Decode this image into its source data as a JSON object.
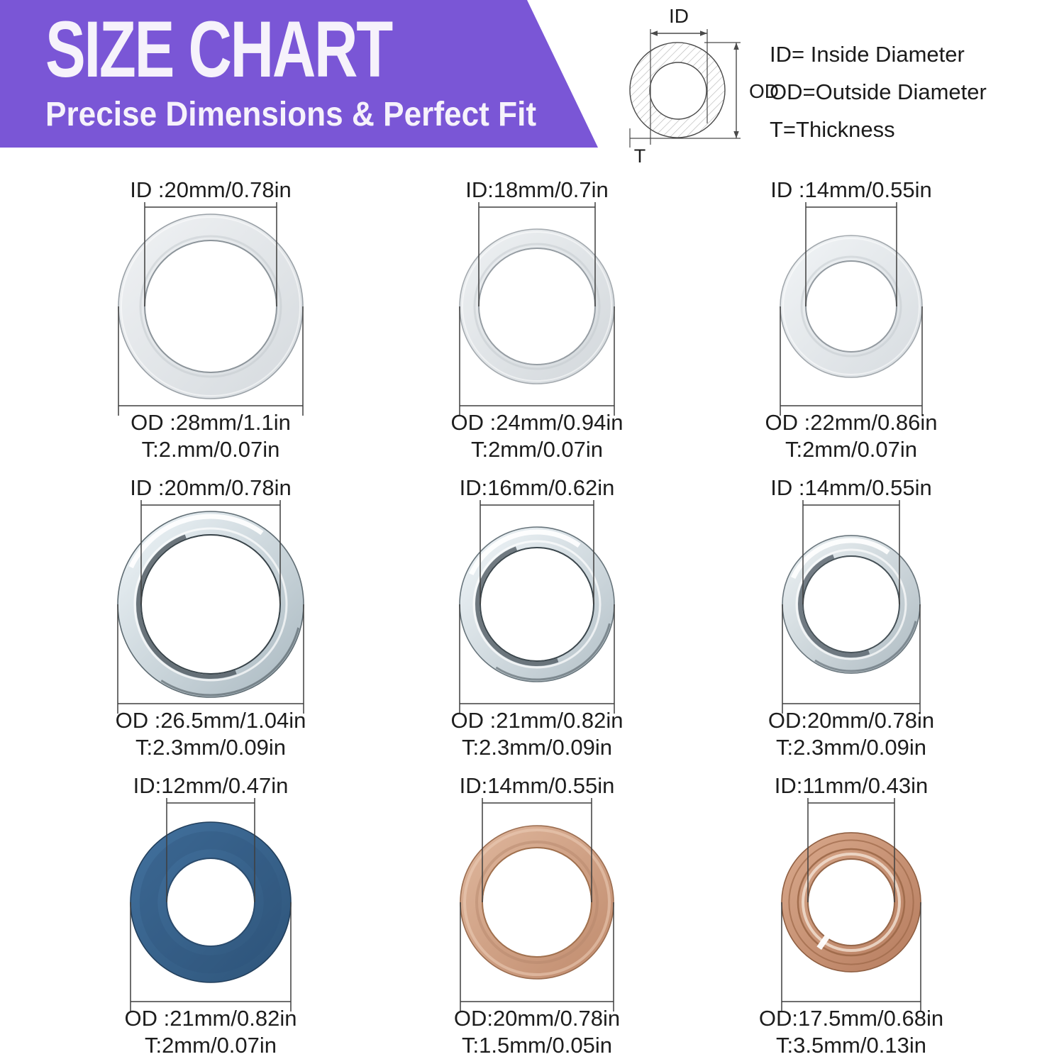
{
  "banner": {
    "title": "SIZE CHART",
    "subtitle": "Precise Dimensions & Perfect Fit",
    "color": "#7a56d6",
    "text_color": "#f6f2fb"
  },
  "diagram": {
    "id_label": "ID",
    "od_label": "OD",
    "t_label": "T",
    "legend": [
      {
        "text": "ID= Inside Diameter"
      },
      {
        "text": "OD=Outside Diameter"
      },
      {
        "text": "T=Thickness"
      }
    ]
  },
  "items": [
    {
      "id_label": "ID :20mm/0.78in",
      "od_label": "OD :28mm/1.1in",
      "t_label": "T:2.mm/0.07in",
      "appearance": "silver aluminum flat washer",
      "ring": {
        "style": "flat",
        "outer_r": 130,
        "inner_r": 93,
        "light": "#f0f2f4",
        "dark": "#d5dade",
        "edge": "#9aa1a7",
        "inner_edge": "#8d959b"
      }
    },
    {
      "id_label": "ID:18mm/0.7in",
      "od_label": "OD :24mm/0.94in",
      "t_label": "T:2mm/0.07in",
      "appearance": "silver aluminum flat washer",
      "ring": {
        "style": "flat",
        "outer_r": 109,
        "inner_r": 82,
        "light": "#eef1f3",
        "dark": "#d2d7db",
        "edge": "#a4aaaf",
        "inner_edge": "#979ea4"
      }
    },
    {
      "id_label": "ID :14mm/0.55in",
      "od_label": "OD :22mm/0.86in",
      "t_label": "T:2mm/0.07in",
      "appearance": "silver zinc flat washer",
      "ring": {
        "style": "flat",
        "outer_r": 100,
        "inner_r": 64,
        "light": "#f1f4f6",
        "dark": "#d7dce0",
        "edge": "#a2a8ad",
        "inner_edge": "#949ba1"
      }
    },
    {
      "id_label": "ID :20mm/0.78in",
      "od_label": "OD :26.5mm/1.04in",
      "t_label": "T:2.3mm/0.09in",
      "appearance": "polished chrome steel gasket ring",
      "ring": {
        "style": "chrome",
        "outer_r": 131,
        "inner_r": 98,
        "light": "#f0f6f9",
        "dark": "#a9b8c0",
        "edge": "#5f6c73",
        "inner_edge": "#39444a",
        "shade": "#4d585f"
      }
    },
    {
      "id_label": "ID:16mm/0.62in",
      "od_label": "OD :21mm/0.82in",
      "t_label": "T:2.3mm/0.09in",
      "appearance": "polished chrome steel gasket ring",
      "ring": {
        "style": "chrome",
        "outer_r": 109,
        "inner_r": 80,
        "light": "#f2f7fa",
        "dark": "#b3c0c7",
        "edge": "#67747b",
        "inner_edge": "#3c474d",
        "shade": "#525d64"
      }
    },
    {
      "id_label": "ID :14mm/0.55in",
      "od_label": "OD:20mm/0.78in",
      "t_label": "T:2.3mm/0.09in",
      "appearance": "zinc steel gasket ring",
      "ring": {
        "style": "chrome",
        "outer_r": 97,
        "inner_r": 68,
        "light": "#eef3f5",
        "dark": "#aebbc2",
        "edge": "#6b777e",
        "inner_edge": "#475258",
        "shade": "#57626a"
      }
    },
    {
      "id_label": "ID:12mm/0.47in",
      "od_label": "OD :21mm/0.82in",
      "t_label": "T:2mm/0.07in",
      "appearance": "blue fiber washer",
      "ring": {
        "style": "fiber",
        "outer_r": 113,
        "inner_r": 62,
        "light": "#42719e",
        "dark": "#2e5479",
        "edge": "#223f5c",
        "inner_edge": "#2b4c6e"
      }
    },
    {
      "id_label": "ID:14mm/0.55in",
      "od_label": "OD:20mm/0.78in",
      "t_label": "T:1.5mm/0.05in",
      "appearance": "copper flat washer",
      "ring": {
        "style": "copper",
        "outer_r": 108,
        "inner_r": 77,
        "light": "#dfb79d",
        "dark": "#c08b6d",
        "edge": "#9b6d50",
        "inner_edge": "#a1714f"
      }
    },
    {
      "id_label": "ID:11mm/0.43in",
      "od_label": "OD:17.5mm/0.68in",
      "t_label": "T:3.5mm/0.13in",
      "appearance": "copper crush washer with folded lip",
      "ring": {
        "style": "crush",
        "outer_r": 98,
        "inner_r": 61,
        "light": "#d9a98c",
        "dark": "#b67c5e",
        "edge": "#8f5f42",
        "inner_edge": "#96674a",
        "ridge": "#9c6848"
      }
    }
  ]
}
